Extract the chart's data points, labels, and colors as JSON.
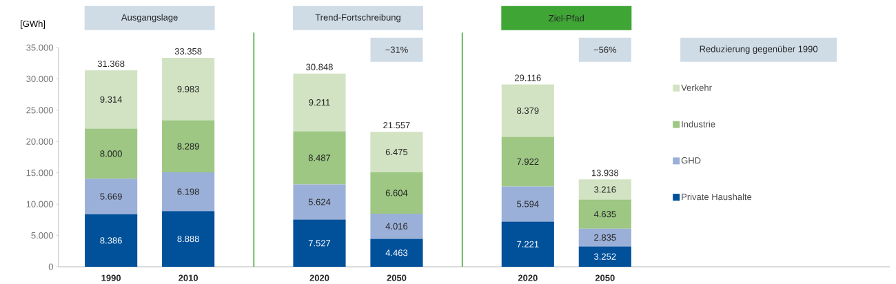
{
  "chart_data": {
    "type": "bar",
    "stacked": true,
    "ylabel": "[GWh]",
    "categories": [
      "1990",
      "2010",
      "2020",
      "2050",
      "2020",
      "2050"
    ],
    "series": [
      {
        "name": "Private Haushalte",
        "color": "#00509a",
        "values": [
          8386,
          8888,
          7527,
          4463,
          7221,
          3252
        ],
        "value_labels": [
          "8.386",
          "8.888",
          "7.527",
          "4.463",
          "7.221",
          "3.252"
        ]
      },
      {
        "name": "GHD",
        "color": "#9bb0d8",
        "values": [
          5669,
          6198,
          5624,
          4016,
          5594,
          2835
        ],
        "value_labels": [
          "5.669",
          "6.198",
          "5.624",
          "4.016",
          "5.594",
          "2.835"
        ]
      },
      {
        "name": "Industrie",
        "color": "#9dc783",
        "values": [
          8000,
          8289,
          8487,
          6604,
          7922,
          4635
        ],
        "value_labels": [
          "8.000",
          "8.289",
          "8.487",
          "6.604",
          "7.922",
          "4.635"
        ]
      },
      {
        "name": "Verkehr",
        "color": "#d2e3c3",
        "values": [
          9314,
          9983,
          9211,
          6475,
          8379,
          3216
        ],
        "value_labels": [
          "9.314",
          "9.983",
          "9.211",
          "6.475",
          "8.379",
          "3.216"
        ]
      }
    ],
    "totals": [
      "31.368",
      "33.358",
      "30.848",
      "21.557",
      "29.116",
      "13.938"
    ],
    "ylim": [
      0,
      35000
    ],
    "yticks": [
      0,
      {
        "value": 5000,
        "label": "5.000"
      },
      {
        "value": 10000,
        "label": "10.000"
      },
      {
        "value": 15000,
        "label": "15.000"
      },
      {
        "value": 20000,
        "label": "20.000"
      },
      {
        "value": 25000,
        "label": "25.000"
      },
      {
        "value": 30000,
        "label": "30.000"
      },
      {
        "value": 35000,
        "label": "35.000"
      }
    ],
    "annotations": [
      "Ausgangslage",
      "Trend-Fortschreibung",
      "Ziel-Pfad",
      "−31%",
      "−56%",
      "Reduzierung gegenüber 1990"
    ],
    "legend": "right"
  }
}
